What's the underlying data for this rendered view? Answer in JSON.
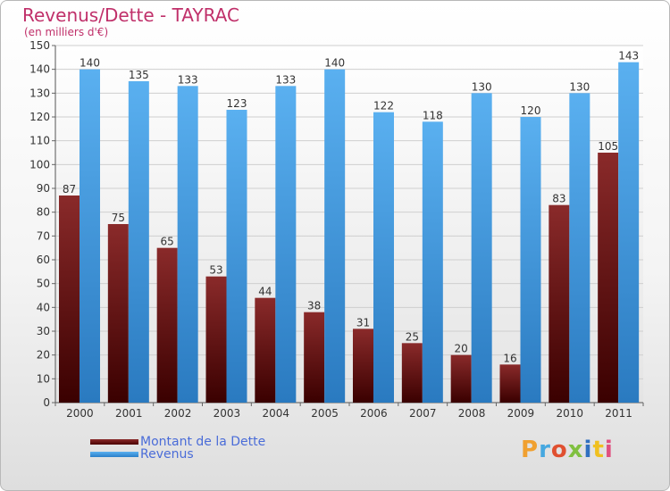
{
  "chart_data": {
    "type": "bar",
    "title": "Revenus/Dette - TAYRAC",
    "subtitle": "(en milliers d'€)",
    "categories": [
      "2000",
      "2001",
      "2002",
      "2003",
      "2004",
      "2005",
      "2006",
      "2007",
      "2008",
      "2009",
      "2010",
      "2011"
    ],
    "series": [
      {
        "name": "Montant de la Dette",
        "color": "#7a1a1a",
        "values": [
          87,
          75,
          65,
          53,
          44,
          38,
          31,
          25,
          20,
          16,
          83,
          105
        ]
      },
      {
        "name": "Revenus",
        "color": "#4da3e8",
        "values": [
          140,
          135,
          133,
          123,
          133,
          140,
          122,
          118,
          130,
          120,
          130,
          143
        ]
      }
    ],
    "ylim": [
      0,
      150
    ],
    "yticks": [
      0,
      10,
      20,
      30,
      40,
      50,
      60,
      70,
      80,
      90,
      100,
      110,
      120,
      130,
      140,
      150
    ],
    "grid": true,
    "legend_position": "bottom-left"
  },
  "brand": {
    "logo_text": "Proxiti",
    "colors": [
      "#f0a030",
      "#46a8e0",
      "#e05030",
      "#80c040",
      "#3070c0",
      "#f0c020",
      "#e05080"
    ]
  }
}
